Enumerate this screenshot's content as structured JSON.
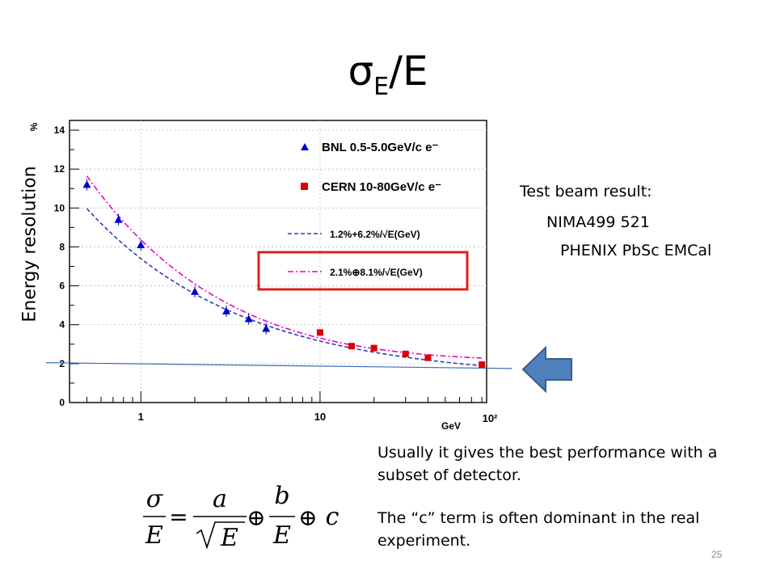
{
  "slide": {
    "title_main": "σ",
    "title_sub": "E",
    "title_tail": "/E",
    "y_axis_title": "Energy resolution",
    "side_heading": "Test beam result:",
    "side_ref1": "NIMA499 521",
    "side_ref2": "PHENIX PbSc EMCal",
    "para1": "Usually it gives the best performance with a subset of detector.",
    "para2": "The “c” term is often dominant in the real experiment.",
    "page_number": "25"
  },
  "chart_data": {
    "type": "scatter",
    "xscale": "log",
    "xlim": [
      0.4,
      85
    ],
    "ylim": [
      0,
      14.5
    ],
    "xlabel": "GeV",
    "ylabel": "%",
    "x_ticks": [
      "1",
      "10",
      "10²"
    ],
    "y_ticks": [
      "0",
      "2",
      "4",
      "6",
      "8",
      "10",
      "12",
      "14"
    ],
    "series": [
      {
        "name": "BNL 0.5-5.0GeV/c e⁻",
        "marker": "triangle",
        "color": "#0000cc",
        "x": [
          0.5,
          0.75,
          1.0,
          2.0,
          3.0,
          4.0,
          5.0
        ],
        "y": [
          11.2,
          9.4,
          8.1,
          5.7,
          4.7,
          4.3,
          3.8
        ]
      },
      {
        "name": "CERN 10-80GeV/c e⁻",
        "marker": "square",
        "color": "#dd0000",
        "x": [
          10,
          15,
          20,
          30,
          40,
          80
        ],
        "y": [
          3.6,
          2.9,
          2.8,
          2.5,
          2.3,
          1.95
        ]
      }
    ],
    "fits": [
      {
        "name": "1.2%+6.2%/√E(GeV)",
        "color": "#2b3fb5",
        "style": "dashed",
        "a": 6.2,
        "c": 1.2,
        "mode": "linear"
      },
      {
        "name": "2.1%⊕8.1%/√E(GeV)",
        "color": "#ee00cc",
        "style": "dashdot",
        "a": 8.1,
        "c": 2.1,
        "mode": "quadrature"
      }
    ],
    "reference_line": {
      "y_start": 2.05,
      "y_end": 1.75,
      "color": "#3b6fb6"
    },
    "highlight": "2.1%⊕8.1%/√E(GeV)"
  }
}
